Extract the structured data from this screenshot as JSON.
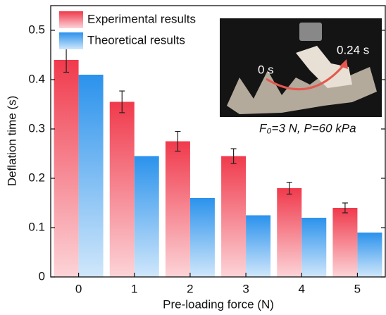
{
  "chart_data": {
    "type": "bar",
    "x_label": "Pre-loading force (N)",
    "y_label": "Deflation time (s)",
    "categories": [
      "0",
      "1",
      "2",
      "3",
      "4",
      "5"
    ],
    "series": [
      {
        "name": "Experimental results",
        "color": "#f03a4c",
        "values": [
          0.44,
          0.355,
          0.275,
          0.245,
          0.18,
          0.14
        ],
        "errors": [
          0.025,
          0.022,
          0.02,
          0.015,
          0.012,
          0.01
        ]
      },
      {
        "name": "Theoretical results",
        "color": "#2b92ec",
        "values": [
          0.41,
          0.245,
          0.16,
          0.125,
          0.12,
          0.09
        ]
      }
    ],
    "ylim": [
      0,
      0.55
    ],
    "yticks": [
      0,
      0.1,
      0.2,
      0.3,
      0.4,
      0.5
    ],
    "legend": "upper left",
    "inset": {
      "start_label": "0 s",
      "end_label": "0.24 s",
      "caption": "F₀=3 N, P=60 kPa"
    }
  }
}
